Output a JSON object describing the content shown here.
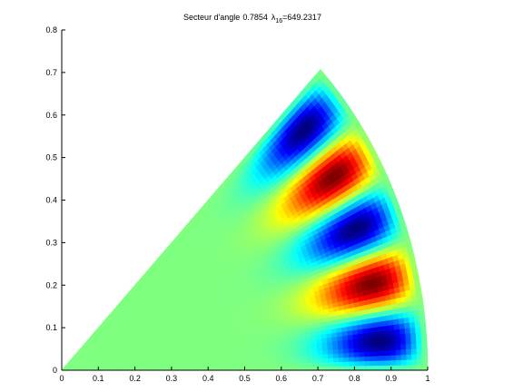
{
  "chart_data": {
    "type": "sector-eigenmode",
    "title": "Secteur d'angle",
    "angle": 0.7854,
    "symbol": "λ",
    "mode": 16,
    "equals": "=",
    "eigenvalue": 649.2317,
    "xlim": [
      0,
      1
    ],
    "ylim": [
      0,
      0.8
    ],
    "xticks": [
      0,
      0.1,
      0.2,
      0.3,
      0.4,
      0.5,
      0.6,
      0.7,
      0.8,
      0.9,
      1
    ],
    "yticks": [
      0,
      0.1,
      0.2,
      0.3,
      0.4,
      0.5,
      0.6,
      0.7,
      0.8
    ],
    "colormap": "jet"
  }
}
